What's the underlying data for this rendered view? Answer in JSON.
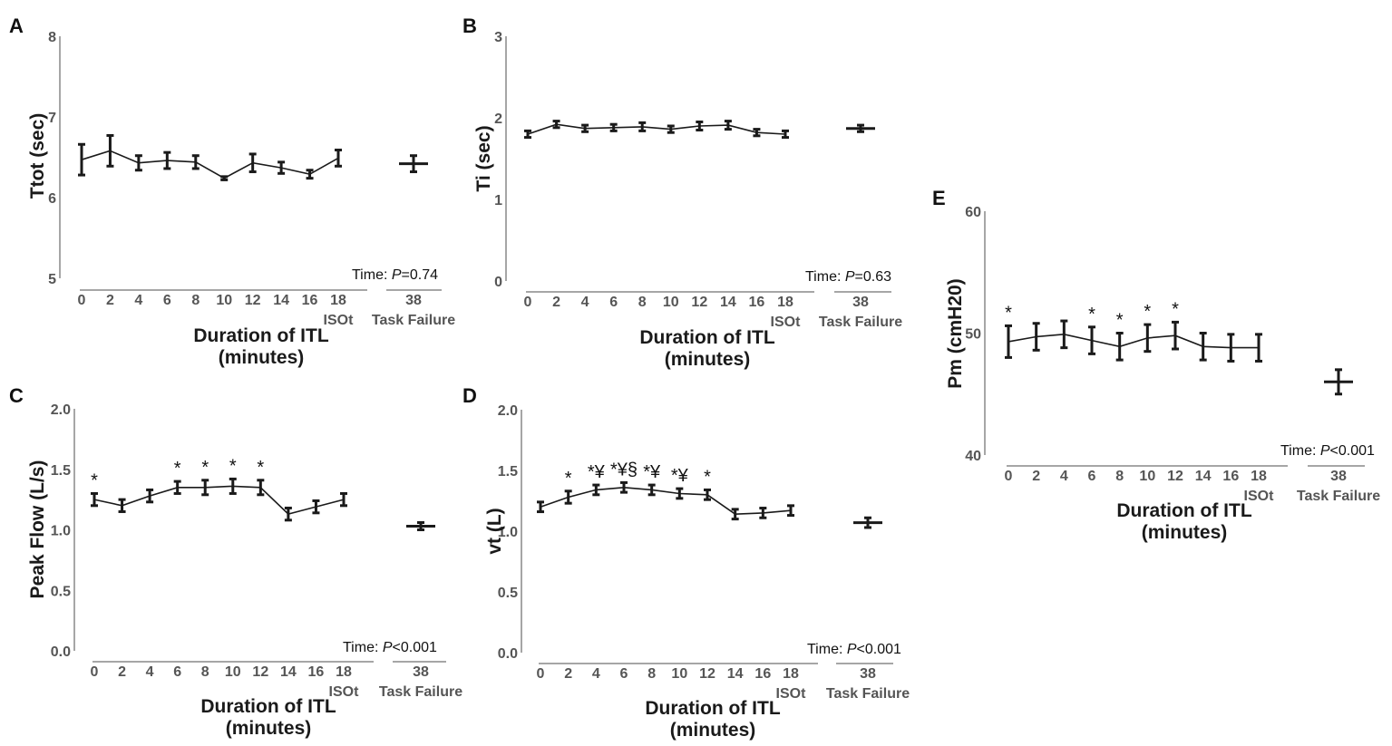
{
  "chart_data": [
    {
      "panel": "A",
      "type": "line",
      "ylabel": "Ttot (sec)",
      "xlabel": [
        "Duration of ITL",
        "(minutes)"
      ],
      "ylim": [
        5,
        8
      ],
      "yticks": [
        "5",
        "6",
        "7",
        "8"
      ],
      "x": [
        0,
        2,
        4,
        6,
        8,
        10,
        12,
        14,
        16,
        18
      ],
      "x_ticks": [
        "0",
        "2",
        "4",
        "6",
        "8",
        "10",
        "12",
        "14",
        "16",
        "18"
      ],
      "isot_label": "ISOt",
      "values": [
        6.47,
        6.58,
        6.43,
        6.46,
        6.44,
        6.24,
        6.43,
        6.37,
        6.29,
        6.49
      ],
      "errors": [
        0.19,
        0.19,
        0.09,
        0.1,
        0.08,
        0.02,
        0.11,
        0.07,
        0.05,
        0.1
      ],
      "task_failure": {
        "x_label": "38",
        "label": "Task Failure",
        "value": 6.42,
        "error": 0.1
      },
      "annotations": [],
      "stat": {
        "prefix": "Time: ",
        "p_label": "P",
        "text": "=0.74"
      }
    },
    {
      "panel": "B",
      "type": "line",
      "ylabel": "Ti (sec)",
      "xlabel": [
        "Duration of ITL",
        "(minutes)"
      ],
      "ylim": [
        0,
        3
      ],
      "yticks": [
        "0",
        "1",
        "2",
        "3"
      ],
      "x": [
        0,
        2,
        4,
        6,
        8,
        10,
        12,
        14,
        16,
        18
      ],
      "x_ticks": [
        "0",
        "2",
        "4",
        "6",
        "8",
        "10",
        "12",
        "14",
        "16",
        "18"
      ],
      "isot_label": "ISOt",
      "values": [
        1.8,
        1.92,
        1.87,
        1.88,
        1.89,
        1.86,
        1.9,
        1.91,
        1.82,
        1.8
      ],
      "errors": [
        0.04,
        0.04,
        0.04,
        0.04,
        0.05,
        0.04,
        0.05,
        0.05,
        0.04,
        0.04
      ],
      "task_failure": {
        "x_label": "38",
        "label": "Task Failure",
        "value": 1.87,
        "error": 0.04
      },
      "annotations": [],
      "stat": {
        "prefix": "Time: ",
        "p_label": "P",
        "text": "=0.63"
      }
    },
    {
      "panel": "C",
      "type": "line",
      "ylabel": "Peak Flow (L/s)",
      "xlabel": [
        "Duration of ITL",
        "(minutes)"
      ],
      "ylim": [
        0,
        2
      ],
      "yticks": [
        "0.0",
        "0.5",
        "1.0",
        "1.5",
        "2.0"
      ],
      "x": [
        0,
        2,
        4,
        6,
        8,
        10,
        12,
        14,
        16,
        18
      ],
      "x_ticks": [
        "0",
        "2",
        "4",
        "6",
        "8",
        "10",
        "12",
        "14",
        "16",
        "18"
      ],
      "isot_label": "ISOt",
      "values": [
        1.25,
        1.2,
        1.28,
        1.35,
        1.35,
        1.36,
        1.35,
        1.13,
        1.19,
        1.25
      ],
      "errors": [
        0.05,
        0.05,
        0.05,
        0.05,
        0.06,
        0.06,
        0.06,
        0.05,
        0.05,
        0.05
      ],
      "task_failure": {
        "x_label": "38",
        "label": "Task Failure",
        "value": 1.03,
        "error": 0.03
      },
      "annotations": [
        {
          "x": 0,
          "text": "*"
        },
        {
          "x": 6,
          "text": "*"
        },
        {
          "x": 8,
          "text": "*"
        },
        {
          "x": 10,
          "text": "*"
        },
        {
          "x": 12,
          "text": "*"
        }
      ],
      "stat": {
        "prefix": "Time: ",
        "p_label": "P",
        "text": "<0.001"
      }
    },
    {
      "panel": "D",
      "type": "line",
      "ylabel": "vt (L)",
      "xlabel": [
        "Duration of ITL",
        "(minutes)"
      ],
      "ylim": [
        0,
        2
      ],
      "yticks": [
        "0.0",
        "0.5",
        "1.0",
        "1.5",
        "2.0"
      ],
      "x": [
        0,
        2,
        4,
        6,
        8,
        10,
        12,
        14,
        16,
        18
      ],
      "x_ticks": [
        "0",
        "2",
        "4",
        "6",
        "8",
        "10",
        "12",
        "14",
        "16",
        "18"
      ],
      "isot_label": "ISOt",
      "values": [
        1.2,
        1.28,
        1.34,
        1.36,
        1.34,
        1.31,
        1.3,
        1.14,
        1.15,
        1.17
      ],
      "errors": [
        0.04,
        0.05,
        0.04,
        0.04,
        0.04,
        0.04,
        0.04,
        0.04,
        0.04,
        0.04
      ],
      "task_failure": {
        "x_label": "38",
        "label": "Task Failure",
        "value": 1.07,
        "error": 0.04
      },
      "annotations": [
        {
          "x": 2,
          "text": "*"
        },
        {
          "x": 4,
          "text": "*¥"
        },
        {
          "x": 6,
          "text": "*¥§"
        },
        {
          "x": 8,
          "text": "*¥"
        },
        {
          "x": 10,
          "text": "*¥"
        },
        {
          "x": 12,
          "text": "*"
        }
      ],
      "stat": {
        "prefix": "Time: ",
        "p_label": "P",
        "text": "<0.001"
      }
    },
    {
      "panel": "E",
      "type": "line",
      "ylabel": "Pm (cmH20)",
      "xlabel": [
        "Duration of ITL",
        "(minutes)"
      ],
      "ylim": [
        40,
        60
      ],
      "yticks": [
        "40",
        "50",
        "60"
      ],
      "x": [
        0,
        2,
        4,
        6,
        8,
        10,
        12,
        14,
        16,
        18
      ],
      "x_ticks": [
        "0",
        "2",
        "4",
        "6",
        "8",
        "10",
        "12",
        "14",
        "16",
        "18"
      ],
      "isot_label": "ISOt",
      "values": [
        49.3,
        49.7,
        49.9,
        49.4,
        48.9,
        49.6,
        49.8,
        48.9,
        48.8,
        48.8
      ],
      "errors": [
        1.3,
        1.1,
        1.1,
        1.1,
        1.1,
        1.1,
        1.1,
        1.1,
        1.1,
        1.1
      ],
      "task_failure": {
        "x_label": "38",
        "label": "Task Failure",
        "value": 46.0,
        "error": 1.0
      },
      "annotations": [
        {
          "x": 0,
          "text": "*"
        },
        {
          "x": 6,
          "text": "*"
        },
        {
          "x": 8,
          "text": "*"
        },
        {
          "x": 10,
          "text": "*"
        },
        {
          "x": 12,
          "text": "*"
        }
      ],
      "stat": {
        "prefix": "Time: ",
        "p_label": "P",
        "text": "<0.001"
      }
    }
  ]
}
